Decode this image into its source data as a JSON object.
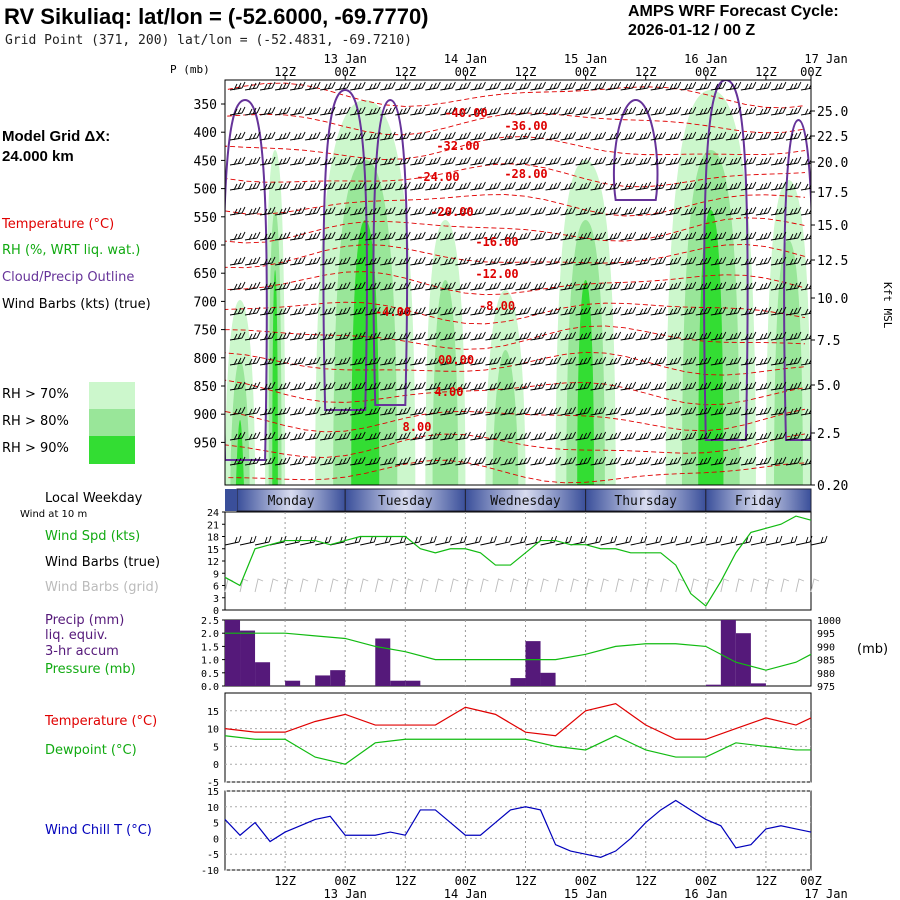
{
  "header": {
    "title": "RV Sikuliaq:  lat/lon = (-52.6000, -69.7770)",
    "grid_point": "Grid Point (371, 200) lat/lon = (-52.4831, -69.7210)",
    "forecast_label": "AMPS WRF Forecast Cycle:",
    "forecast_cycle": "2026-01-12 / 00  Z"
  },
  "legend": {
    "model_grid": "Model Grid ΔX:",
    "model_grid_value": " 24.000 km",
    "temperature": "Temperature (°C)",
    "rh": "RH (%, WRT liq. wat.)",
    "cloud": "Cloud/Precip Outline",
    "wind_barbs": "Wind Barbs (kts) (true)",
    "rh70": "RH > 70%",
    "rh80": "RH > 80%",
    "rh90": "RH > 90%",
    "local_weekday": "Local Weekday",
    "wind_10m": "Wind at 10 m",
    "wind_spd": "Wind Spd (kts)",
    "barbs_true": "Wind Barbs (true)",
    "barbs_grid": "Wind Barbs (grid)",
    "precip": "Precip (mm)",
    "liq": "liq. equiv.",
    "accum": "3-hr accum",
    "pressure": "Pressure (mb)",
    "pressure_unit": "(mb)",
    "temp2": "Temperature (°C)",
    "dewpoint": "Dewpoint (°C)",
    "windchill": "Wind Chill T (°C)"
  },
  "colors": {
    "rh70": "#ccf7cc",
    "rh80": "#99e699",
    "rh90": "#33dd33",
    "temp": "#e00000",
    "cloud": "#663399",
    "green": "#11bb11",
    "precip": "#55197a",
    "wchill": "#0000bb",
    "day_band": "#3a4f9a"
  },
  "chart_data": [
    {
      "type": "heatmap",
      "title": "Vertical cross-section",
      "ylabel": "P (mb)",
      "y2label": "Kft MSL",
      "pressure_ticks": [
        "350",
        "400",
        "450",
        "500",
        "550",
        "600",
        "650",
        "700",
        "750",
        "800",
        "850",
        "900",
        "950"
      ],
      "kft_ticks": [
        "25.0",
        "22.5",
        "20.0",
        "17.5",
        "15.0",
        "12.5",
        "10.0",
        "7.5",
        "5.0",
        "2.5",
        "0.20"
      ],
      "time_top": [
        "12Z",
        "00Z",
        "12Z",
        "00Z",
        "12Z",
        "00Z",
        "12Z",
        "00Z",
        "12Z",
        "00Z"
      ],
      "date_top": [
        "13 Jan",
        "14 Jan",
        "15 Jan",
        "16 Jan",
        "17 Jan"
      ],
      "temp_labels": [
        "-40.00",
        "-36.00",
        "-32.00",
        "-28.00",
        "-24.00",
        "-20.00",
        "-16.00",
        "-12.00",
        "-8.00",
        "-4.00",
        "00.00",
        "4.00",
        "8.00"
      ]
    },
    {
      "type": "line",
      "title": "Wind Spd (kts)",
      "weekdays": [
        "Monday",
        "Tuesday",
        "Wednesday",
        "Thursday",
        "Friday"
      ],
      "yticks": [
        "24",
        "21",
        "18",
        "15",
        "12",
        "9",
        "6",
        "3",
        "0"
      ],
      "ylim": [
        0,
        24
      ],
      "x_hours": [
        0,
        3,
        6,
        9,
        12,
        15,
        18,
        21,
        24,
        27,
        30,
        33,
        36,
        39,
        42,
        45,
        48,
        51,
        54,
        57,
        60,
        63,
        66,
        69,
        72,
        75,
        78,
        81,
        84,
        87,
        90,
        93,
        96,
        99,
        102,
        105,
        108,
        111,
        114,
        117
      ],
      "values": [
        8,
        6,
        15,
        16,
        17,
        17,
        17,
        16,
        17,
        18,
        18,
        18,
        18,
        15,
        14,
        15,
        15,
        14,
        11,
        11,
        14,
        17,
        17,
        16,
        16,
        15,
        15,
        14,
        14,
        14,
        11,
        4,
        1,
        7,
        14,
        19,
        20,
        21,
        23,
        22
      ]
    },
    {
      "type": "bar",
      "title": "Precip / Pressure",
      "yticks_left": [
        "2.5",
        "2.0",
        "1.5",
        "1.0",
        "0.5",
        "0.0"
      ],
      "yticks_right": [
        "1000",
        "995",
        "990",
        "985",
        "980",
        "975"
      ],
      "ylim": [
        0,
        2.5
      ],
      "y2lim": [
        975,
        1000
      ],
      "precip_x_hours": [
        0,
        3,
        6,
        9,
        12,
        15,
        18,
        21,
        24,
        27,
        30,
        33,
        36,
        39,
        42,
        45,
        48,
        51,
        54,
        57,
        60,
        63,
        66,
        69,
        72,
        75,
        78,
        81,
        84,
        87,
        90,
        93,
        96,
        99,
        102,
        105,
        108,
        111,
        114,
        117
      ],
      "precip_values": [
        2.5,
        2.1,
        0.9,
        0,
        0.2,
        0,
        0.4,
        0.6,
        0,
        0,
        1.8,
        0.2,
        0.2,
        0,
        0,
        0,
        0,
        0,
        0,
        0.3,
        1.7,
        0.5,
        0,
        0,
        0,
        0,
        0,
        0,
        0,
        0,
        0,
        0,
        0.05,
        2.5,
        2.0,
        0.1,
        0,
        0,
        0,
        0
      ],
      "pressure_x_hours": [
        0,
        6,
        12,
        18,
        24,
        30,
        36,
        42,
        48,
        54,
        60,
        66,
        72,
        78,
        84,
        90,
        96,
        102,
        108,
        114,
        117
      ],
      "pressure_values": [
        995,
        995,
        995,
        994,
        993,
        990,
        988,
        985,
        985,
        985,
        985,
        985,
        987,
        990,
        991,
        991,
        990,
        984,
        981,
        984,
        987
      ]
    },
    {
      "type": "line",
      "title": "Temperature / Dewpoint",
      "yticks": [
        "15",
        "10",
        "5",
        "0",
        "-5"
      ],
      "ylim": [
        -5,
        20
      ],
      "x_hours": [
        0,
        6,
        12,
        18,
        24,
        30,
        36,
        42,
        48,
        54,
        60,
        66,
        72,
        78,
        84,
        90,
        96,
        102,
        108,
        114,
        117
      ],
      "temperature": [
        10,
        9,
        9,
        12,
        14,
        11,
        11,
        11,
        16,
        14,
        9,
        8,
        15,
        17,
        11,
        7,
        7,
        10,
        13,
        11,
        13
      ],
      "dewpoint": [
        8,
        7,
        7,
        2,
        0,
        6,
        7,
        7,
        7,
        7,
        7,
        5,
        4,
        8,
        4,
        2,
        2,
        6,
        5,
        4,
        4
      ]
    },
    {
      "type": "line",
      "title": "Wind Chill T (°C)",
      "yticks": [
        "15",
        "10",
        "5",
        "0",
        "-5",
        "-10"
      ],
      "ylim": [
        -10,
        15
      ],
      "x_hours": [
        0,
        3,
        6,
        9,
        12,
        15,
        18,
        21,
        24,
        27,
        30,
        33,
        36,
        39,
        42,
        45,
        48,
        51,
        54,
        57,
        60,
        63,
        66,
        69,
        72,
        75,
        78,
        81,
        84,
        87,
        90,
        93,
        96,
        99,
        102,
        105,
        108,
        111,
        114,
        117
      ],
      "values": [
        6,
        1,
        5,
        -1,
        2,
        4,
        6,
        7,
        1,
        1,
        1,
        2,
        1,
        9,
        9,
        5,
        1,
        1,
        5,
        9,
        10,
        9,
        -2,
        -4,
        -5,
        -6,
        -4,
        0,
        5,
        9,
        12,
        9,
        6,
        4,
        -3,
        -2,
        3,
        4,
        3,
        2
      ],
      "time_bottom": [
        "12Z",
        "00Z",
        "12Z",
        "00Z",
        "12Z",
        "00Z",
        "12Z",
        "00Z",
        "12Z",
        "00Z"
      ],
      "date_bottom": [
        "13 Jan",
        "14 Jan",
        "15 Jan",
        "16 Jan",
        "17 Jan"
      ]
    }
  ]
}
